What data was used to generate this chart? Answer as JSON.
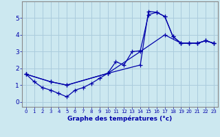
{
  "xlabel": "Graphe des températures (°c)",
  "bg_color": "#cce8f0",
  "grid_color": "#aaccdd",
  "line_color": "#0000aa",
  "xlim": [
    -0.5,
    23.5
  ],
  "ylim": [
    -0.3,
    6.0
  ],
  "xticks": [
    0,
    1,
    2,
    3,
    4,
    5,
    6,
    7,
    8,
    9,
    10,
    11,
    12,
    13,
    14,
    15,
    16,
    17,
    18,
    19,
    20,
    21,
    22,
    23
  ],
  "yticks": [
    0,
    1,
    2,
    3,
    4,
    5
  ],
  "series": [
    [
      [
        0,
        1.65
      ],
      [
        1,
        1.2
      ],
      [
        2,
        0.85
      ],
      [
        3,
        0.7
      ],
      [
        4,
        0.5
      ],
      [
        5,
        0.3
      ],
      [
        6,
        0.7
      ],
      [
        7,
        0.85
      ],
      [
        8,
        1.1
      ],
      [
        9,
        1.4
      ],
      [
        10,
        1.7
      ],
      [
        11,
        2.4
      ],
      [
        12,
        2.2
      ],
      [
        13,
        3.0
      ],
      [
        14,
        3.05
      ],
      [
        15,
        5.2
      ],
      [
        16,
        5.35
      ],
      [
        17,
        5.1
      ],
      [
        18,
        3.9
      ],
      [
        19,
        3.5
      ],
      [
        20,
        3.5
      ],
      [
        21,
        3.5
      ],
      [
        22,
        3.65
      ],
      [
        23,
        3.5
      ]
    ],
    [
      [
        0,
        1.65
      ],
      [
        3,
        1.2
      ],
      [
        5,
        1.0
      ],
      [
        10,
        1.7
      ],
      [
        14,
        3.0
      ],
      [
        17,
        4.0
      ],
      [
        19,
        3.5
      ],
      [
        20,
        3.5
      ],
      [
        21,
        3.5
      ],
      [
        22,
        3.65
      ],
      [
        23,
        3.5
      ]
    ],
    [
      [
        0,
        1.65
      ],
      [
        3,
        1.2
      ],
      [
        5,
        1.0
      ],
      [
        10,
        1.7
      ],
      [
        14,
        2.2
      ],
      [
        15,
        5.4
      ],
      [
        16,
        5.35
      ],
      [
        17,
        5.1
      ],
      [
        18,
        3.9
      ],
      [
        19,
        3.5
      ],
      [
        20,
        3.5
      ],
      [
        21,
        3.5
      ],
      [
        22,
        3.65
      ],
      [
        23,
        3.5
      ]
    ]
  ]
}
